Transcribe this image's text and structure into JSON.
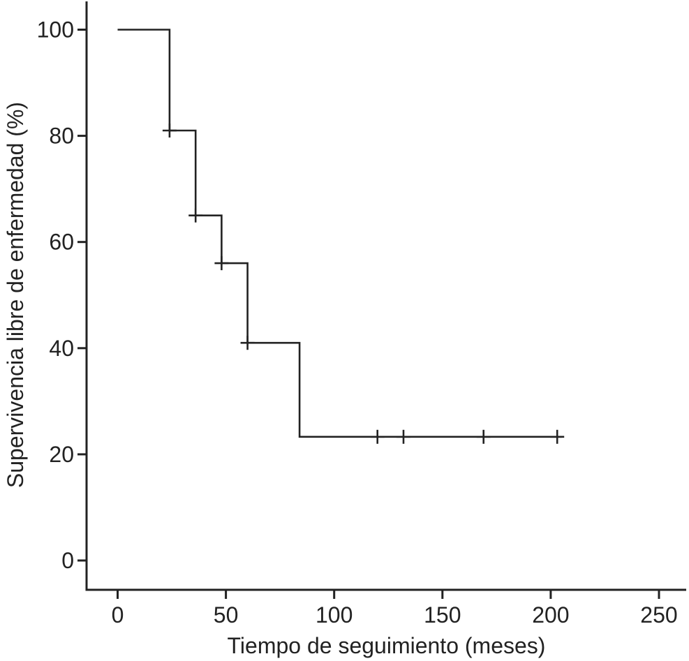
{
  "chart_data": {
    "type": "line",
    "subtype": "kaplan-meier-step-function",
    "title": "",
    "xlabel": "Tiempo de seguimiento (meses)",
    "ylabel": "Supervivencia libre de enfermedad (%)",
    "xlim": [
      0,
      250
    ],
    "ylim": [
      0,
      100
    ],
    "x_ticks": [
      0,
      50,
      100,
      150,
      200,
      250
    ],
    "y_ticks": [
      0,
      20,
      40,
      60,
      80,
      100
    ],
    "grid": false,
    "legend": "none",
    "line_color": "#222222",
    "series": [
      {
        "name": "Supervivencia libre de enfermedad",
        "step_points": [
          {
            "t": 0,
            "s": 100
          },
          {
            "t": 24,
            "s": 81
          },
          {
            "t": 36,
            "s": 65
          },
          {
            "t": 48,
            "s": 56
          },
          {
            "t": 60,
            "s": 41
          },
          {
            "t": 84,
            "s": 23.3
          }
        ],
        "curve_end_t": 205,
        "censor_marks": [
          {
            "t": 24,
            "s": 81
          },
          {
            "t": 36,
            "s": 65
          },
          {
            "t": 48,
            "s": 56
          },
          {
            "t": 60,
            "s": 41
          },
          {
            "t": 120,
            "s": 23.3
          },
          {
            "t": 132,
            "s": 23.3
          },
          {
            "t": 169,
            "s": 23.3
          },
          {
            "t": 203,
            "s": 23.3
          }
        ]
      }
    ]
  }
}
